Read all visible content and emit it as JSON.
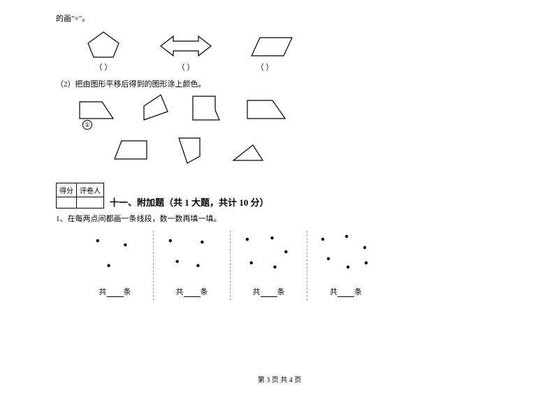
{
  "top_text": "的画\"×\"。",
  "parens": {
    "p1": "（    ）",
    "p2": "（    ）",
    "p3": "（    ）"
  },
  "q2_text": "（2）把由图形平移后得到的图形涂上颜色。",
  "circled_one": "①",
  "score_table": {
    "h1": "得分",
    "h2": "评卷人"
  },
  "section11": "十一、附加题（共 1 大题，共计 10 分）",
  "q11_1": "1、在每两点间都画一条线段，数一数再填一填。",
  "count_label_prefix": "共",
  "count_label_suffix": "条",
  "footer": "第 3 页  共 4 页",
  "stroke_color": "#000000",
  "stroke_width": 1.2,
  "dot_radius": 2.2,
  "dot_color": "#000000",
  "dots_panels": [
    {
      "points": [
        [
          30,
          14
        ],
        [
          70,
          20
        ],
        [
          46,
          50
        ]
      ]
    },
    {
      "points": [
        [
          24,
          14
        ],
        [
          70,
          16
        ],
        [
          34,
          44
        ],
        [
          64,
          50
        ]
      ]
    },
    {
      "points": [
        [
          24,
          12
        ],
        [
          60,
          10
        ],
        [
          80,
          30
        ],
        [
          30,
          46
        ],
        [
          64,
          52
        ]
      ]
    },
    {
      "points": [
        [
          22,
          12
        ],
        [
          56,
          8
        ],
        [
          82,
          24
        ],
        [
          30,
          40
        ],
        [
          58,
          52
        ],
        [
          84,
          46
        ]
      ]
    }
  ]
}
